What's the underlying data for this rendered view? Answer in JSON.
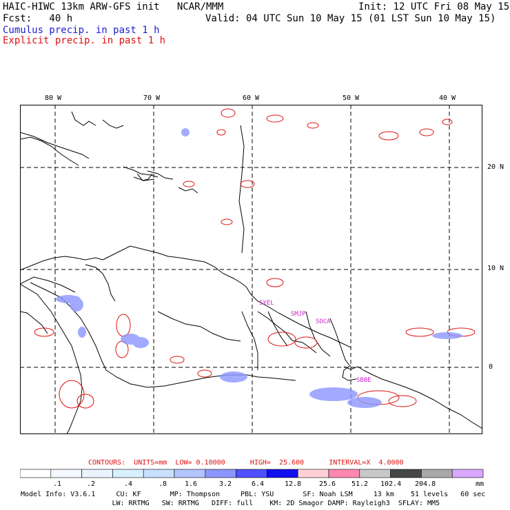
{
  "header": {
    "line1_left": "HAIC-HIWC 13km ARW-GFS init   NCAR/MMM",
    "line1_right": "Init: 12 UTC Fri 08 May 15",
    "line2_left": "Fcst:   40 h",
    "line2_right": "Valid: 04 UTC Sun 10 May 15 (01 LST Sun 10 May 15)",
    "cumulus_label": "Cumulus precip. in past 1 h",
    "explicit_label": "Explicit precip. in past 1 h"
  },
  "map": {
    "lon_labels": [
      "80 W",
      "70 W",
      "60 W",
      "50 W",
      "40 W"
    ],
    "lat_labels": [
      "20 N",
      "10 N",
      "0"
    ],
    "stations": [
      "SYEL",
      "SMJP",
      "SOCA",
      "SBBE"
    ],
    "colors": {
      "explicit": "#e01010",
      "cumulus": "#6b7bff",
      "coast": "#000000",
      "grid": "#000000",
      "station": "#d020d0"
    }
  },
  "contours": {
    "text": "CONTOURS:  UNITS=mm  LOW= 0.10000      HIGH=  25.600      INTERVAL=X  4.0000"
  },
  "colorbar": {
    "colors": [
      "#ffffff",
      "#f4f8ff",
      "#eaf4ff",
      "#d8f0ff",
      "#c8e0ff",
      "#b4c4ff",
      "#8c96ff",
      "#5050ff",
      "#1010f0",
      "#ffd0d8",
      "#ff88b0",
      "#c8c8c8",
      "#464646",
      "#a8a8a8",
      "#d8a8ff"
    ],
    "labels": [
      ".1",
      ".2",
      ".4",
      ".8",
      "1.6",
      "3.2",
      "6.4",
      "12.8",
      "25.6",
      "51.2",
      "102.4",
      "204.8"
    ],
    "unit": "mm"
  },
  "model_info": {
    "line1": "Model Info: V3.6.1     CU: KF       MP: Thompson     PBL: YSU       SF: Noah LSM     13 km    51 levels   60 sec",
    "line2": "                      LW: RRTMG   SW: RRTMG   DIFF: full    KM: 2D Smagor DAMP: Rayleigh3  SFLAY: MM5"
  }
}
